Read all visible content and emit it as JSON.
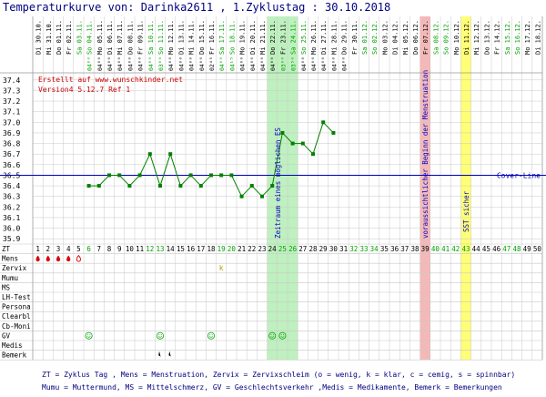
{
  "title": "Temperaturkurve von: Darinka2611 , 1.Zyklustag : 30.10.2018",
  "credit_line1": "Erstellt auf www.wunschkinder.net",
  "credit_line2": "Version4 5.12.7 Ref 1",
  "cover_line_label": "Cover-Line",
  "footer_line1": "ZT = Zyklus Tag , Mens = Menstruation, Zervix = Zervixschleim (o = wenig, k = klar, c = cemig, s = spinnbar)",
  "footer_line2": "Mumu = Muttermund, MS = Mittelschmerz, GV = Geschlechtsverkehr ,Medis = Medikamente, Bemerk = Bemerkungen",
  "colors": {
    "title": "#000080",
    "line": "#008000",
    "cover_line": "#0000c0",
    "credit": "#cc0000",
    "mens_drop": "#dd0000",
    "fertile_window": "#bff0bf",
    "expected_mens": "#f4b8b8",
    "ssw_sicher": "#ffff77",
    "green_day": "#00a000",
    "weekend_date": "#00a000"
  },
  "chart_data": {
    "type": "line",
    "x": [
      1,
      2,
      3,
      4,
      5,
      6,
      7,
      8,
      9,
      10,
      11,
      12,
      13,
      14,
      15,
      16,
      17,
      18,
      19,
      20,
      21,
      22,
      23,
      24,
      25,
      26,
      27,
      28,
      29,
      30,
      31,
      32,
      33,
      34,
      35,
      36,
      37,
      38,
      39,
      40,
      41,
      42,
      43,
      44,
      45,
      46,
      47,
      48,
      49,
      50
    ],
    "dates": [
      "Di 30.10.",
      "Mi 31.10.",
      "Do 01.11.",
      "Fr 02.11.",
      "Sa 03.11.",
      "So 04.11.",
      "Mo 05.11.",
      "Di 06.11.",
      "Mi 07.11.",
      "Do 08.11.",
      "Fr 09.11.",
      "Sa 10.11.",
      "So 11.11.",
      "Mo 12.11.",
      "Di 13.11.",
      "Mi 14.11.",
      "Do 15.11.",
      "Fr 16.11.",
      "Sa 17.11.",
      "So 18.11.",
      "Mo 19.11.",
      "Di 20.11.",
      "Mi 21.11.",
      "Do 22.11.",
      "Fr 23.11.",
      "Sa 24.11.",
      "So 25.11.",
      "Mo 26.11.",
      "Di 27.11.",
      "Mi 28.11.",
      "Do 29.11.",
      "Fr 30.11.",
      "Sa 01.12.",
      "So 02.12.",
      "Mo 03.12.",
      "Di 04.12.",
      "Mi 05.12.",
      "Do 06.12.",
      "Fr 07.12.",
      "Sa 08.12.",
      "So 09.12.",
      "Mo 10.12.",
      "Di 11.12.",
      "Mi 12.12.",
      "Do 13.12.",
      "Fr 14.12.",
      "Sa 15.12.",
      "So 16.12.",
      "Mo 17.12.",
      "Di 18.12."
    ],
    "times": [
      "",
      "",
      "",
      "",
      "",
      "04⁰⁰",
      "04⁰⁰",
      "04⁰⁰",
      "04⁰⁰",
      "04⁰⁰",
      "04⁰⁰",
      "04⁰⁰",
      "03⁰⁰",
      "04⁰⁰",
      "04⁰⁰",
      "04⁰⁰",
      "04⁰⁰",
      "02⁴⁵",
      "04⁰⁰",
      "04¹⁵",
      "04⁰⁰",
      "04⁰⁰",
      "04⁰⁰",
      "04⁰⁰",
      "03⁰⁰",
      "03⁵⁰",
      "04⁰⁰",
      "04⁰⁰",
      "04⁰⁰",
      "04⁰⁰",
      "04⁰⁰",
      "",
      "",
      "",
      "",
      "",
      "",
      "",
      "",
      "",
      "",
      "",
      "",
      "",
      "",
      "",
      "",
      "",
      "",
      ""
    ],
    "green_days": [
      6,
      12,
      13,
      19,
      20,
      25,
      26,
      32,
      33,
      34,
      40,
      41,
      42,
      43,
      47,
      48
    ],
    "temps": [
      null,
      null,
      null,
      null,
      null,
      36.4,
      36.4,
      36.5,
      36.5,
      36.4,
      36.5,
      36.7,
      36.4,
      36.7,
      36.4,
      36.5,
      36.4,
      36.5,
      36.5,
      36.5,
      36.3,
      36.4,
      36.3,
      36.4,
      36.9,
      36.8,
      36.8,
      36.7,
      37.0,
      36.9,
      null,
      null,
      null,
      null,
      null,
      null,
      null,
      null,
      null,
      null,
      null,
      null,
      null,
      null,
      null,
      null,
      null,
      null,
      null,
      null
    ],
    "y_ticks": [
      35.9,
      36.0,
      36.1,
      36.2,
      36.3,
      36.4,
      36.5,
      36.6,
      36.7,
      36.8,
      36.9,
      37.0,
      37.1,
      37.2,
      37.3,
      37.4
    ],
    "ylim": [
      35.85,
      37.45
    ],
    "cover_line": 36.5,
    "mens_days": [
      1,
      2,
      3,
      4
    ],
    "mens_light_day": 5,
    "zervix": [
      {
        "day": 19,
        "value": "k"
      }
    ],
    "gv_days": [
      6,
      13,
      18,
      24,
      25
    ],
    "bemerk_days": [
      13,
      14
    ],
    "bands": [
      {
        "from": 24,
        "to": 26,
        "label": "Zeitraum eines möglichen ES"
      },
      {
        "from": 39,
        "to": 39,
        "label": "voraussichtlicher Beginn der Menstruation"
      },
      {
        "from": 43,
        "to": 43,
        "label": "SST sicher"
      }
    ],
    "row_labels": [
      "ZT",
      "Mens",
      "Zervix",
      "Mumu",
      "MS",
      "LH-Test",
      "Persona",
      "Clearbl",
      "Cb-Moni",
      "GV",
      "Medis",
      "Bemerk"
    ]
  }
}
